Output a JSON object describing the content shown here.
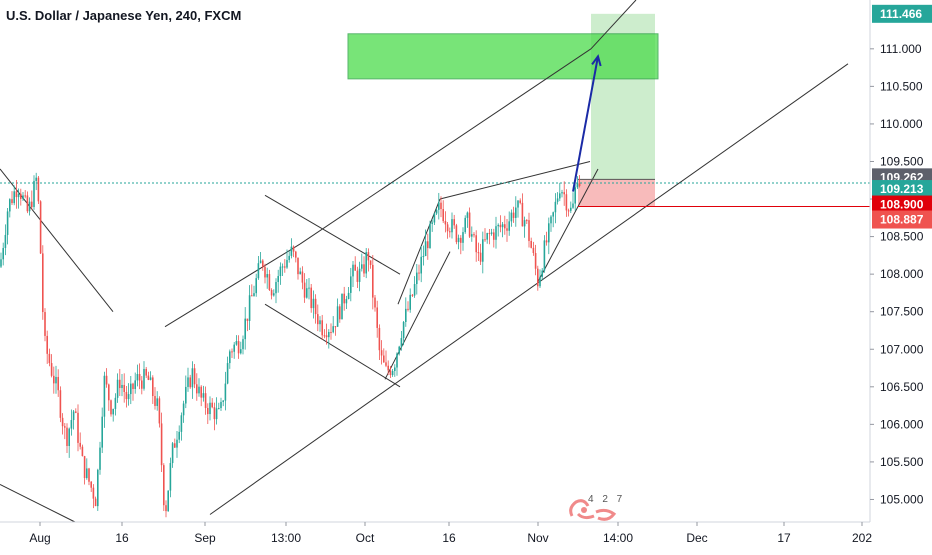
{
  "header": {
    "title": "U.S. Dollar / Japanese Yen, 240, FXCM"
  },
  "watermark": {
    "digits": "4 2 7"
  },
  "colors": {
    "up": "#26a69a",
    "down": "#ef5350",
    "target_zone": "#4cdb4c",
    "profit_zone": "#c8ebc8",
    "loss_zone": "#f7b4b4",
    "projection_arrow": "#1a2aa6",
    "axis_text": "#131722",
    "last_price_line": "#26a69a",
    "stop_line": "#e0000a"
  },
  "chart_data": {
    "type": "candlestick",
    "instrument": "U.S. Dollar / Japanese Yen",
    "timeframe": "240",
    "source": "FXCM",
    "ylim": [
      104.7,
      111.65
    ],
    "y_ticks": [
      105.0,
      105.5,
      106.0,
      106.5,
      107.0,
      107.5,
      108.0,
      108.5,
      109.0,
      109.5,
      110.0,
      110.5,
      111.0
    ],
    "y_tick_labels": [
      "105.000",
      "105.500",
      "106.000",
      "106.500",
      "107.000",
      "107.500",
      "108.000",
      "108.500",
      "109.000",
      "109.500",
      "110.000",
      "110.500",
      "111.000"
    ],
    "x_tick_labels": [
      "Aug",
      "16",
      "Sep",
      "13:00",
      "Oct",
      "16",
      "Nov",
      "14:00",
      "Dec",
      "17",
      "202"
    ],
    "price_tags": [
      {
        "label": "111.466",
        "value": 111.466,
        "color": "#26a69a"
      },
      {
        "label": "109.262",
        "value": 109.262,
        "color": "#5d606b"
      },
      {
        "label": "109.213",
        "value": 109.213,
        "color": "#26a69a"
      },
      {
        "label": "108.900",
        "value": 108.9,
        "color": "#e0000a"
      },
      {
        "label": "108.887",
        "value": 108.887,
        "color": "#ef5350"
      }
    ],
    "price_path": [
      [
        0,
        108.1
      ],
      [
        8,
        108.9
      ],
      [
        18,
        109.2
      ],
      [
        28,
        108.8
      ],
      [
        37,
        109.3
      ],
      [
        40,
        108.5
      ],
      [
        44,
        107.1
      ],
      [
        50,
        106.8
      ],
      [
        58,
        106.4
      ],
      [
        66,
        105.8
      ],
      [
        74,
        106.2
      ],
      [
        82,
        105.5
      ],
      [
        90,
        105.2
      ],
      [
        96,
        105.0
      ],
      [
        104,
        106.6
      ],
      [
        112,
        106.2
      ],
      [
        120,
        106.6
      ],
      [
        128,
        106.3
      ],
      [
        136,
        106.6
      ],
      [
        148,
        106.6
      ],
      [
        158,
        106.2
      ],
      [
        165,
        104.8
      ],
      [
        172,
        105.6
      ],
      [
        182,
        106.2
      ],
      [
        192,
        106.7
      ],
      [
        202,
        106.3
      ],
      [
        212,
        106.2
      ],
      [
        220,
        106.1
      ],
      [
        230,
        107.0
      ],
      [
        240,
        107.1
      ],
      [
        252,
        107.7
      ],
      [
        262,
        108.2
      ],
      [
        272,
        107.8
      ],
      [
        282,
        108.1
      ],
      [
        292,
        108.3
      ],
      [
        302,
        107.9
      ],
      [
        312,
        107.6
      ],
      [
        322,
        107.3
      ],
      [
        332,
        107.3
      ],
      [
        342,
        107.6
      ],
      [
        352,
        108.0
      ],
      [
        362,
        108.0
      ],
      [
        368,
        108.3
      ],
      [
        374,
        107.6
      ],
      [
        380,
        106.9
      ],
      [
        386,
        106.7
      ],
      [
        394,
        106.8
      ],
      [
        402,
        107.3
      ],
      [
        410,
        107.6
      ],
      [
        418,
        108.0
      ],
      [
        426,
        108.4
      ],
      [
        432,
        108.6
      ],
      [
        440,
        108.9
      ],
      [
        448,
        108.7
      ],
      [
        458,
        108.5
      ],
      [
        468,
        108.7
      ],
      [
        478,
        108.2
      ],
      [
        488,
        108.5
      ],
      [
        498,
        108.6
      ],
      [
        508,
        108.7
      ],
      [
        516,
        108.9
      ],
      [
        526,
        108.7
      ],
      [
        532,
        108.3
      ],
      [
        538,
        107.9
      ],
      [
        544,
        108.3
      ],
      [
        552,
        108.7
      ],
      [
        560,
        109.2
      ],
      [
        566,
        109.0
      ],
      [
        572,
        108.8
      ],
      [
        578,
        109.4
      ],
      [
        580,
        109.2
      ]
    ],
    "annotations": {
      "target_zone": {
        "x0": 348,
        "x1": 658,
        "y0": 110.6,
        "y1": 111.2
      },
      "profit_zone": {
        "x0": 591,
        "x1": 655,
        "y0": 109.262,
        "y1": 111.466
      },
      "loss_zone": {
        "x0": 578,
        "x1": 655,
        "y0": 108.9,
        "y1": 109.262
      },
      "stop_line": {
        "x0": 578,
        "y": 108.9
      },
      "projection": [
        [
          573,
          109.1
        ],
        [
          598,
          110.9
        ]
      ],
      "trend_lines": [
        [
          [
            165,
            107.3
          ],
          [
            300,
            108.4
          ]
        ],
        [
          [
            300,
            108.4
          ],
          [
            591,
            111.0
          ]
        ],
        [
          [
            210,
            104.8
          ],
          [
            848,
            110.8
          ]
        ],
        [
          [
            265,
            109.05
          ],
          [
            400,
            108.0
          ]
        ],
        [
          [
            265,
            107.6
          ],
          [
            400,
            106.5
          ]
        ],
        [
          [
            398,
            107.6
          ],
          [
            440,
            109.0
          ]
        ],
        [
          [
            385,
            106.6
          ],
          [
            450,
            108.3
          ]
        ],
        [
          [
            440,
            109.0
          ],
          [
            590,
            109.5
          ]
        ],
        [
          [
            538,
            107.9
          ],
          [
            598,
            109.4
          ]
        ],
        [
          [
            0,
            109.4
          ],
          [
            113,
            107.5
          ]
        ],
        [
          [
            0,
            105.2
          ],
          [
            75,
            104.7
          ]
        ]
      ]
    }
  }
}
